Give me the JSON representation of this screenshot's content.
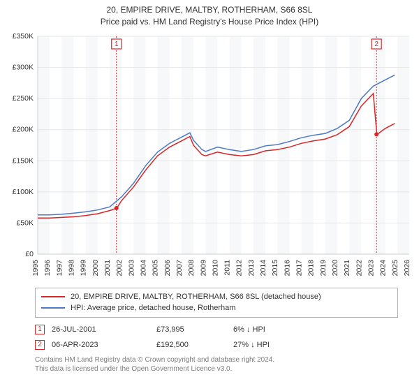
{
  "title_line1": "20, EMPIRE DRIVE, MALTBY, ROTHERHAM, S66 8SL",
  "title_line2": "Price paid vs. HM Land Registry's House Price Index (HPI)",
  "chart": {
    "type": "line",
    "background_color": "#ffffff",
    "plot_background_bands": true,
    "band_color_light": "#ffffff",
    "band_color_shade": "#f7f8fa",
    "grid_color": "#e6e6e6",
    "ylim": [
      0,
      350000
    ],
    "ytick_step": 50000,
    "y_ticks": [
      "£0",
      "£50K",
      "£100K",
      "£150K",
      "£200K",
      "£250K",
      "£300K",
      "£350K"
    ],
    "xlim": [
      1995,
      2026
    ],
    "x_ticks": [
      1995,
      1996,
      1997,
      1998,
      1999,
      2000,
      2001,
      2002,
      2003,
      2004,
      2005,
      2006,
      2007,
      2008,
      2009,
      2010,
      2011,
      2012,
      2013,
      2014,
      2015,
      2016,
      2017,
      2018,
      2019,
      2020,
      2021,
      2022,
      2023,
      2024,
      2025,
      2026
    ],
    "tick_fontsize": 10.5,
    "series": [
      {
        "name": "20, EMPIRE DRIVE, MALTBY, ROTHERHAM, S66 8SL (detached house)",
        "color": "#d62728",
        "line_width": 1.5,
        "years": [
          1995,
          1996,
          1997,
          1998,
          1999,
          2000,
          2001,
          2001.6,
          2002,
          2003,
          2004,
          2005,
          2006,
          2007,
          2007.7,
          2008,
          2008.7,
          2009,
          2010,
          2011,
          2012,
          2013,
          2014,
          2015,
          2016,
          2017,
          2018,
          2019,
          2020,
          2021,
          2022,
          2023,
          2023.3,
          2023.5,
          2024,
          2024.8
        ],
        "values": [
          58000,
          58000,
          59000,
          60000,
          62000,
          65000,
          70000,
          73995,
          86000,
          108000,
          135000,
          158000,
          172000,
          182000,
          189000,
          175000,
          160000,
          158000,
          164000,
          160000,
          158000,
          160000,
          166000,
          168000,
          172000,
          178000,
          182000,
          185000,
          192000,
          205000,
          238000,
          258000,
          192500,
          195000,
          202000,
          210000
        ]
      },
      {
        "name": "HPI: Average price, detached house, Rotherham",
        "color": "#4e79c4",
        "line_width": 1.5,
        "years": [
          1995,
          1996,
          1997,
          1998,
          1999,
          2000,
          2001,
          2002,
          2003,
          2004,
          2005,
          2006,
          2007,
          2007.7,
          2008,
          2008.7,
          2009,
          2010,
          2011,
          2012,
          2013,
          2014,
          2015,
          2016,
          2017,
          2018,
          2019,
          2020,
          2021,
          2022,
          2023,
          2024,
          2024.8
        ],
        "values": [
          63000,
          63000,
          64000,
          66000,
          68000,
          71000,
          76000,
          92000,
          114000,
          142000,
          164000,
          178000,
          188000,
          195000,
          183000,
          168000,
          165000,
          172000,
          168000,
          165000,
          168000,
          174000,
          176000,
          181000,
          187000,
          191000,
          194000,
          202000,
          215000,
          250000,
          270000,
          280000,
          288000
        ]
      }
    ],
    "markers": [
      {
        "n": "1",
        "year": 2001.57,
        "value": 73995,
        "color": "#d62728",
        "label_y_offset": -14
      },
      {
        "n": "2",
        "year": 2023.27,
        "value": 192500,
        "color": "#d62728",
        "label_y_offset": -14
      }
    ],
    "marker_line_dash": "2,2"
  },
  "legend": [
    {
      "color": "#d62728",
      "label": "20, EMPIRE DRIVE, MALTBY, ROTHERHAM, S66 8SL (detached house)"
    },
    {
      "color": "#4e79c4",
      "label": "HPI: Average price, detached house, Rotherham"
    }
  ],
  "sales": [
    {
      "n": "1",
      "color": "#d62728",
      "date": "26-JUL-2001",
      "price": "£73,995",
      "diff": "6% ↓ HPI"
    },
    {
      "n": "2",
      "color": "#d62728",
      "date": "06-APR-2023",
      "price": "£192,500",
      "diff": "27% ↓ HPI"
    }
  ],
  "footer_line1": "Contains HM Land Registry data © Crown copyright and database right 2024.",
  "footer_line2": "This data is licensed under the Open Government Licence v3.0."
}
